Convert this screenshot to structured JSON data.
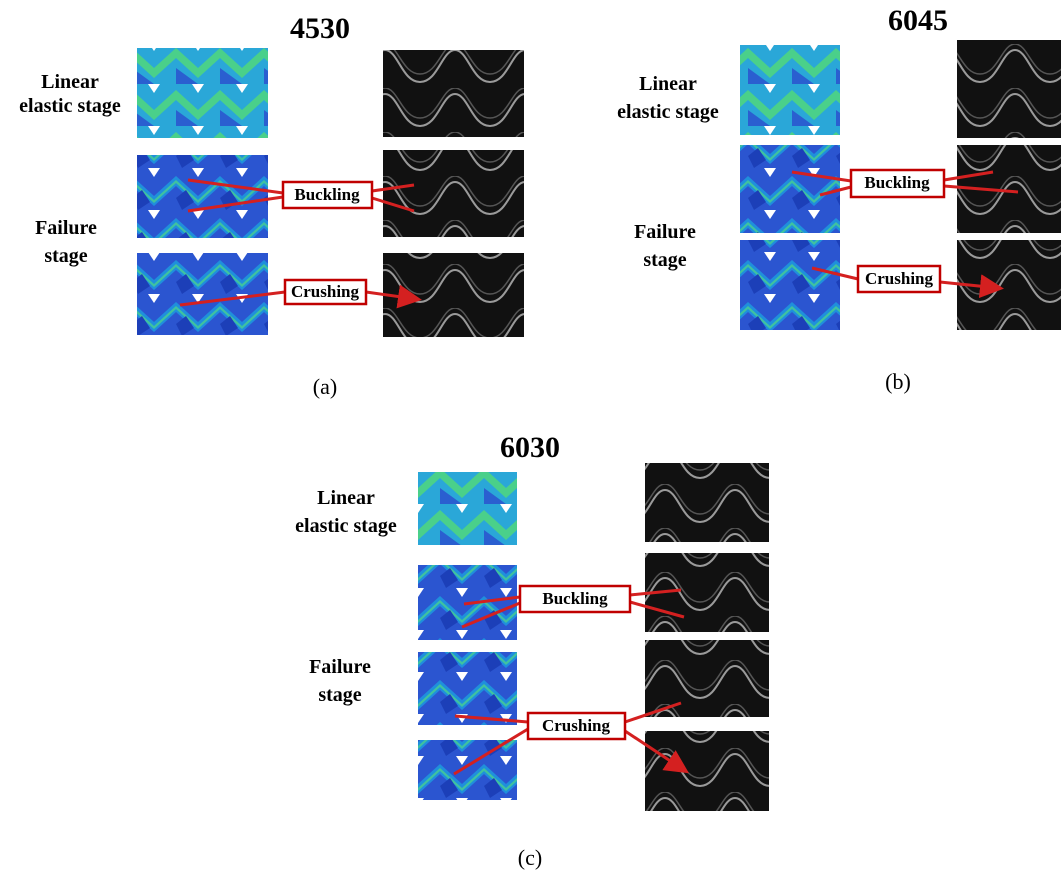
{
  "panels": [
    {
      "title": "4530",
      "linear_label": [
        "Linear",
        "elastic stage"
      ],
      "failure_label": [
        "Failure",
        "stage"
      ],
      "buckling": "Buckling",
      "crushing": "Crushing",
      "caption": "(a)"
    },
    {
      "title": "6045",
      "linear_label": [
        "Linear",
        "elastic stage"
      ],
      "failure_label": [
        "Failure",
        "stage"
      ],
      "buckling": "Buckling",
      "crushing": "Crushing",
      "caption": "(b)"
    },
    {
      "title": "6030",
      "linear_label": [
        "Linear",
        "elastic stage"
      ],
      "failure_label": [
        "Failure",
        "stage"
      ],
      "buckling": "Buckling",
      "crushing": "Crushing",
      "caption": "(c)"
    }
  ]
}
